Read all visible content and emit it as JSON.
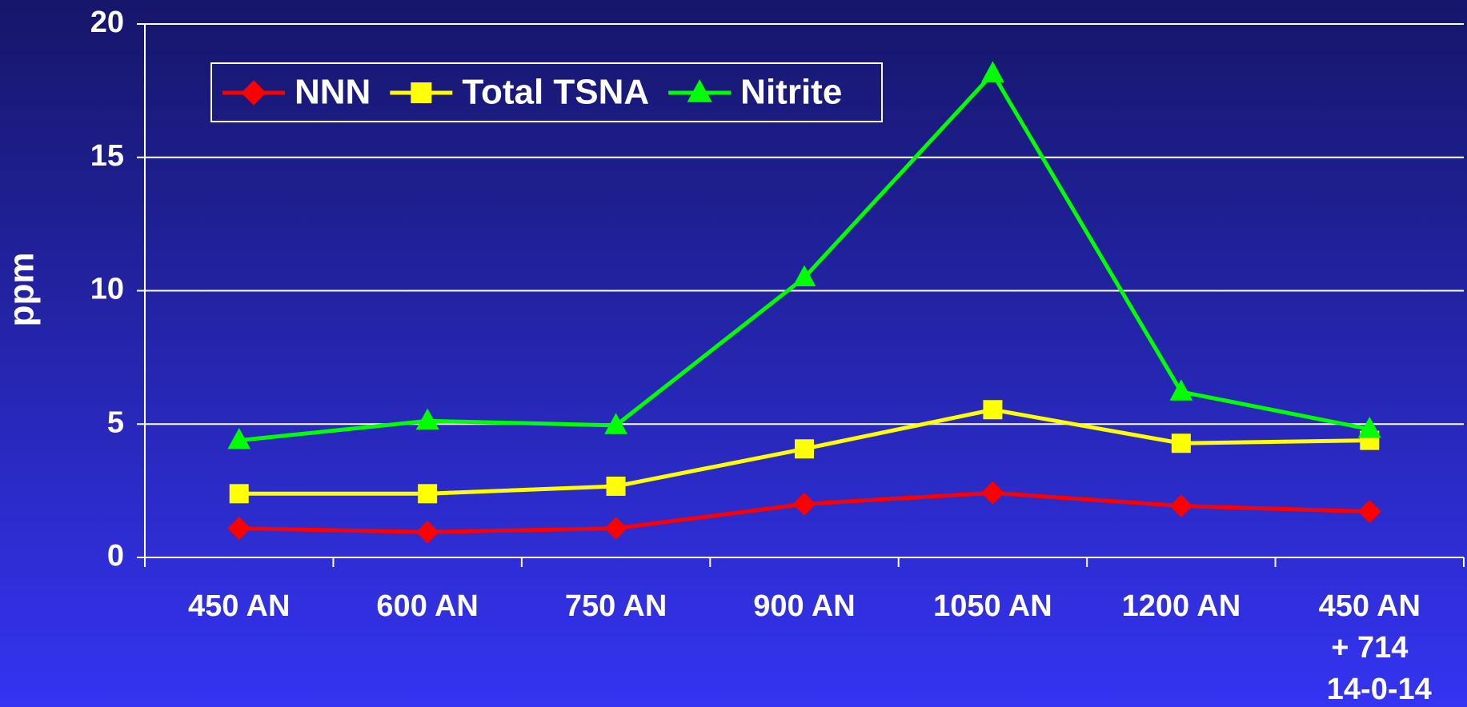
{
  "chart_data": {
    "type": "line",
    "y_label": "ppm",
    "categories": [
      "450 AN",
      "600 AN",
      "750 AN",
      "900 AN",
      "1050 AN",
      "1200 AN",
      "450 AN\n+ 714\n14-0-14"
    ],
    "series": [
      {
        "name": "NNN",
        "color": "#ff0000",
        "marker": "diamond",
        "values": [
          1.09,
          0.95,
          1.09,
          2.0,
          2.42,
          1.93,
          1.72
        ]
      },
      {
        "name": "Total TSNA",
        "color": "#ffff00",
        "marker": "square",
        "values": [
          2.39,
          2.39,
          2.67,
          4.07,
          5.54,
          4.28,
          4.39
        ]
      },
      {
        "name": "Nitrite",
        "color": "#00ff00",
        "marker": "triangle",
        "values": [
          4.39,
          5.12,
          4.95,
          10.49,
          18.14,
          6.21,
          4.81
        ]
      }
    ],
    "ylim": [
      0,
      20
    ],
    "yticks": [
      0,
      5,
      10,
      15,
      20
    ],
    "grid": true,
    "legend": "top-left"
  }
}
